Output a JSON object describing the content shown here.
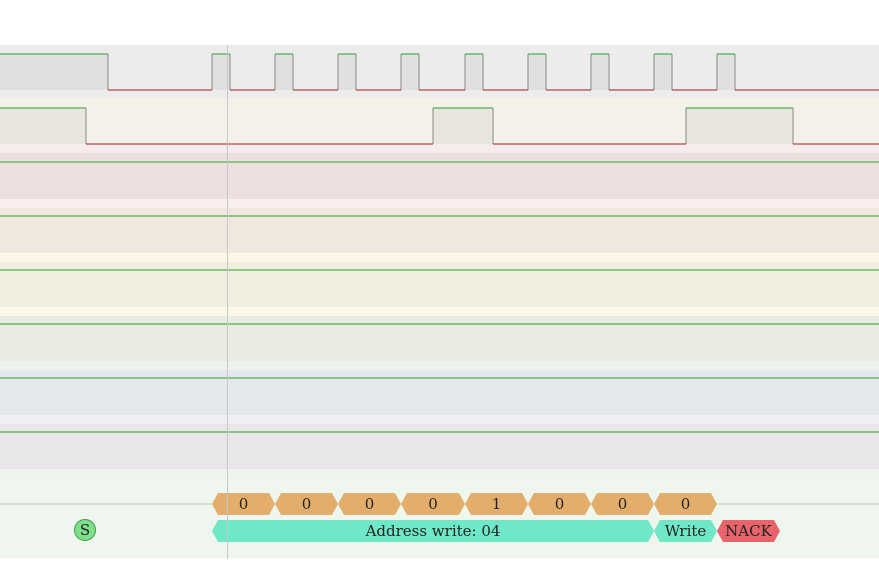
{
  "channels": [
    {
      "id": "ch0",
      "color": "#ececec"
    },
    {
      "id": "ch1",
      "color": "#f4f0ea"
    },
    {
      "id": "ch2",
      "color": "#eedfdf"
    },
    {
      "id": "ch3",
      "color": "#f0e8de"
    },
    {
      "id": "ch4",
      "color": "#f1eee0"
    },
    {
      "id": "ch5",
      "color": "#e8ece2"
    },
    {
      "id": "ch6",
      "color": "#e4e7ec"
    },
    {
      "id": "ch7",
      "color": "#e9e6ea"
    }
  ],
  "decoder": {
    "start_label": "S",
    "bits": [
      "0",
      "0",
      "0",
      "0",
      "1",
      "0",
      "0",
      "0"
    ],
    "address_label": "Address write: 04",
    "rw_label": "Write",
    "ack_label": "NACK"
  },
  "colors": {
    "trace_high": "#2aa02a",
    "trace_low": "#a02020",
    "bit_fill": "#e3ae6c",
    "address_fill": "#6fe8c8",
    "nack_fill": "#e8646a",
    "start_fill": "#7ede8a"
  }
}
